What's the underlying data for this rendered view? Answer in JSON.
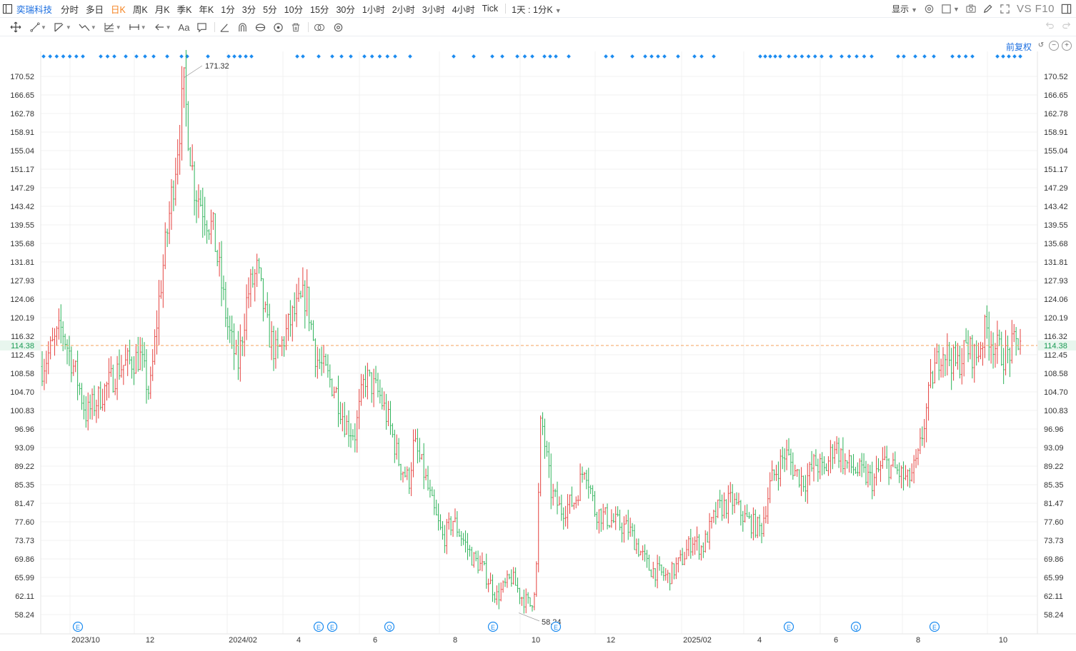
{
  "toolbar": {
    "stock_name": "奕瑞科技",
    "periods": [
      "分时",
      "多日",
      "日K",
      "周K",
      "月K",
      "季K",
      "年K",
      "1分",
      "3分",
      "5分",
      "10分",
      "15分",
      "30分",
      "1小时",
      "2小时",
      "3小时",
      "4小时",
      "Tick"
    ],
    "active_period": "日K",
    "minute_k_label": "1天 : 1分K",
    "display_label": "显示",
    "vs_label": "VS F10"
  },
  "draw_tools": [
    "crosshair-icon",
    "line-tool-icon",
    "channel-tool-icon",
    "wave-tool-icon",
    "fib-tool-icon",
    "measure-tool-icon",
    "arrow-tool-icon",
    "text-tool-icon",
    "comment-tool-icon",
    "angle-tool-icon",
    "magnet-icon",
    "lock-icon",
    "eye-icon",
    "trash-icon",
    "link-icon",
    "settings-icon"
  ],
  "chart": {
    "adjust_label": "前复权",
    "last_price": "114.38",
    "high_label": "171.32",
    "low_label": "58.24",
    "y_ticks": [
      "170.52",
      "166.65",
      "162.78",
      "158.91",
      "155.04",
      "151.17",
      "147.29",
      "143.42",
      "139.55",
      "135.68",
      "131.81",
      "127.93",
      "124.06",
      "120.19",
      "116.32",
      "112.45",
      "108.58",
      "104.70",
      "100.83",
      "96.96",
      "93.09",
      "89.22",
      "85.35",
      "81.47",
      "77.60",
      "73.73",
      "69.86",
      "65.99",
      "62.11",
      "58.24"
    ],
    "x_ticks": [
      "2023/10",
      "12",
      "2024/02",
      "4",
      "6",
      "8",
      "10",
      "12",
      "2025/02",
      "4",
      "6",
      "8",
      "10"
    ],
    "event_markers": [
      "E",
      "E",
      "E",
      "Q",
      "E",
      "E",
      "E",
      "Q",
      "E"
    ],
    "colors": {
      "up": "#e5423f",
      "down": "#2eb35a",
      "last_price_line": "#f5a25d",
      "last_price_text": "#1a9b53",
      "dots": "#1d8cf0",
      "grid": "#f0f0f0"
    }
  },
  "chart_data": {
    "type": "candlestick",
    "title": "",
    "ylim": [
      58.24,
      170.52
    ],
    "y_ticks": [
      170.52,
      166.65,
      162.78,
      158.91,
      155.04,
      151.17,
      147.29,
      143.42,
      139.55,
      135.68,
      131.81,
      127.93,
      124.06,
      120.19,
      116.32,
      112.45,
      108.58,
      104.7,
      100.83,
      96.96,
      93.09,
      89.22,
      85.35,
      81.47,
      77.6,
      73.73,
      69.86,
      65.99,
      62.11,
      58.24
    ],
    "x_ticks": [
      "2023/10",
      "12",
      "2024/02",
      "4",
      "6",
      "8",
      "10",
      "12",
      "2025/02",
      "4",
      "6",
      "8",
      "10"
    ],
    "last_price": 114.38,
    "max_price": 171.32,
    "min_price": 58.24,
    "events": [
      {
        "label": "E",
        "month": "2023/10"
      },
      {
        "label": "E",
        "month": "2024/04"
      },
      {
        "label": "E",
        "month": "2024/04"
      },
      {
        "label": "Q",
        "month": "2024/06"
      },
      {
        "label": "E",
        "month": "2024/08"
      },
      {
        "label": "E",
        "month": "2024/10"
      },
      {
        "label": "E",
        "month": "2025/04"
      },
      {
        "label": "Q",
        "month": "2025/06"
      },
      {
        "label": "E",
        "month": "2025/08"
      }
    ],
    "price_path": [
      [
        0,
        110
      ],
      [
        0.02,
        118
      ],
      [
        0.035,
        108
      ],
      [
        0.045,
        100
      ],
      [
        0.06,
        104
      ],
      [
        0.08,
        110
      ],
      [
        0.1,
        112
      ],
      [
        0.11,
        104
      ],
      [
        0.12,
        125
      ],
      [
        0.135,
        150
      ],
      [
        0.145,
        168
      ],
      [
        0.155,
        148
      ],
      [
        0.175,
        138
      ],
      [
        0.19,
        118
      ],
      [
        0.2,
        110
      ],
      [
        0.21,
        125
      ],
      [
        0.22,
        130
      ],
      [
        0.23,
        118
      ],
      [
        0.24,
        112
      ],
      [
        0.255,
        120
      ],
      [
        0.27,
        125
      ],
      [
        0.28,
        112
      ],
      [
        0.3,
        105
      ],
      [
        0.31,
        98
      ],
      [
        0.32,
        96
      ],
      [
        0.33,
        108
      ],
      [
        0.345,
        104
      ],
      [
        0.355,
        98
      ],
      [
        0.365,
        90
      ],
      [
        0.375,
        86
      ],
      [
        0.38,
        94
      ],
      [
        0.39,
        88
      ],
      [
        0.4,
        80
      ],
      [
        0.41,
        74
      ],
      [
        0.42,
        78
      ],
      [
        0.43,
        74
      ],
      [
        0.44,
        70
      ],
      [
        0.45,
        68
      ],
      [
        0.465,
        62
      ],
      [
        0.48,
        66
      ],
      [
        0.49,
        62
      ],
      [
        0.5,
        60
      ],
      [
        0.505,
        66
      ],
      [
        0.51,
        100
      ],
      [
        0.52,
        84
      ],
      [
        0.53,
        80
      ],
      [
        0.545,
        82
      ],
      [
        0.555,
        90
      ],
      [
        0.565,
        80
      ],
      [
        0.58,
        78
      ],
      [
        0.6,
        76
      ],
      [
        0.62,
        68
      ],
      [
        0.64,
        66
      ],
      [
        0.655,
        70
      ],
      [
        0.665,
        74
      ],
      [
        0.675,
        72
      ],
      [
        0.69,
        80
      ],
      [
        0.705,
        82
      ],
      [
        0.72,
        78
      ],
      [
        0.735,
        76
      ],
      [
        0.745,
        86
      ],
      [
        0.76,
        92
      ],
      [
        0.77,
        88
      ],
      [
        0.78,
        86
      ],
      [
        0.79,
        90
      ],
      [
        0.8,
        88
      ],
      [
        0.81,
        94
      ],
      [
        0.82,
        90
      ],
      [
        0.835,
        88
      ],
      [
        0.85,
        86
      ],
      [
        0.86,
        90
      ],
      [
        0.875,
        88
      ],
      [
        0.885,
        86
      ],
      [
        0.895,
        90
      ],
      [
        0.9,
        96
      ],
      [
        0.91,
        108
      ],
      [
        0.92,
        114
      ],
      [
        0.935,
        110
      ],
      [
        0.945,
        114
      ],
      [
        0.955,
        112
      ],
      [
        0.965,
        118
      ],
      [
        0.975,
        114
      ],
      [
        0.985,
        112
      ],
      [
        1.0,
        116
      ]
    ]
  }
}
